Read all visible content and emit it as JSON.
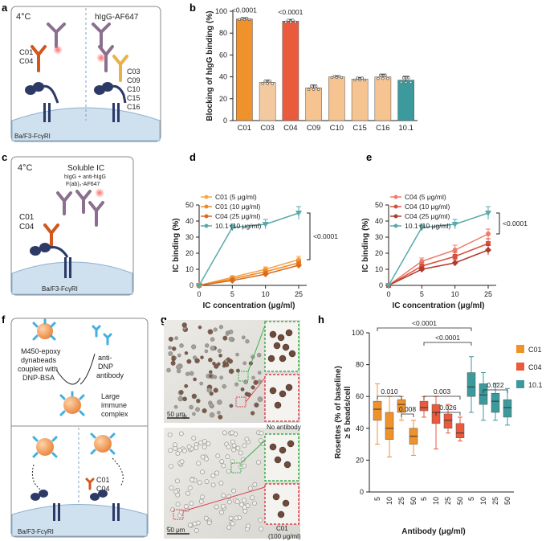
{
  "panel_labels": {
    "a": "a",
    "b": "b",
    "c": "c",
    "d": "d",
    "e": "e",
    "f": "f",
    "g": "g",
    "h": "h"
  },
  "panel_a": {
    "temp": "4°C",
    "label_right": "hIgG-AF647",
    "left_clones": [
      "C01",
      "C04"
    ],
    "right_clones": [
      "C03",
      "C09",
      "C10",
      "C15",
      "C16"
    ],
    "cell": "Ba/F3-FcγRI"
  },
  "panel_c": {
    "temp": "4°C",
    "title": "Soluble IC",
    "subtitle1": "hIgG + anti-hIgG",
    "subtitle2": "F(ab)₂-AF647",
    "clones": [
      "C01",
      "C04"
    ],
    "cell": "Ba/F3-FcγRI"
  },
  "panel_f": {
    "beads_text": [
      "M450-epoxy",
      "dynabeads",
      "coupled with",
      "DNP-BSA"
    ],
    "antibody_text": [
      "anti-",
      "DNP",
      "antibody"
    ],
    "complex_text": [
      "Large",
      "immune",
      "complex"
    ],
    "clones": [
      "C01",
      "C04"
    ],
    "cell": "Ba/F3-FcγRI"
  },
  "panel_g": {
    "scale_top": "50 μm",
    "scale_bottom": "50 μm",
    "label_top": "No antibody",
    "label_bottom1": "C01",
    "label_bottom2": "(100 μg/ml)"
  },
  "colors": {
    "C01": "#f0922b",
    "C03": "#f3c9a0",
    "C04": "#ea5a3d",
    "C09": "#f5c490",
    "C10": "#f5c490",
    "C15": "#f5c490",
    "C16": "#f5c490",
    "10.1": "#3d9a9c",
    "d_light": "#f4a64a",
    "d_mid": "#ee8a2a",
    "d_dark": "#d96b1c",
    "e_light": "#ef7a69",
    "e_mid": "#d9503a",
    "e_dark": "#b23a2b",
    "teal": "#5aa9ab"
  },
  "chart_data": [
    {
      "id": "b",
      "type": "bar",
      "ylabel": "Blocking of hIgG binding (%)",
      "ylim": [
        0,
        100
      ],
      "yticks": [
        "0",
        "20",
        "40",
        "60",
        "80",
        "100"
      ],
      "categories": [
        "C01",
        "C03",
        "C04",
        "C09",
        "C10",
        "C15",
        "C16",
        "10.1"
      ],
      "values": [
        93,
        35,
        91,
        30,
        40,
        38,
        40,
        37
      ],
      "errors": [
        1,
        2,
        1.5,
        2.5,
        1,
        1.5,
        2.5,
        3.5
      ],
      "annotations": [
        {
          "category": "C01",
          "text": "<0.0001"
        },
        {
          "category": "C04",
          "text": "<0.0001"
        }
      ]
    },
    {
      "id": "d",
      "type": "line",
      "xlabel": "IC concentration (μg/ml)",
      "ylabel": "IC binding (%)",
      "x": [
        0,
        5,
        10,
        25
      ],
      "xticks": [
        "0",
        "5",
        "10",
        "25"
      ],
      "ylim": [
        0,
        50
      ],
      "yticks": [
        "0",
        "10",
        "20",
        "30",
        "40",
        "50"
      ],
      "series": [
        {
          "name": "C01 (5 μg/ml)",
          "values": [
            0,
            5,
            10,
            16
          ],
          "errors": [
            0,
            1,
            1.5,
            2
          ]
        },
        {
          "name": "C01 (10 μg/ml)",
          "values": [
            0,
            4,
            8.5,
            14
          ],
          "errors": [
            0,
            1,
            1.5,
            2
          ]
        },
        {
          "name": "C04 (25 μg/ml)",
          "values": [
            0,
            3,
            7,
            12.5
          ],
          "errors": [
            0,
            1,
            1.5,
            2
          ]
        },
        {
          "name": "10.1 (10 μg/ml)",
          "values": [
            0,
            36,
            38,
            45
          ],
          "errors": [
            0,
            2,
            3,
            4
          ]
        }
      ],
      "annotation": "<0.0001"
    },
    {
      "id": "e",
      "type": "line",
      "xlabel": "IC concentration (μg/ml)",
      "ylabel": "IC binding (%)",
      "x": [
        0,
        5,
        10,
        25
      ],
      "xticks": [
        "0",
        "5",
        "10",
        "25"
      ],
      "ylim": [
        0,
        50
      ],
      "yticks": [
        "0",
        "10",
        "20",
        "30",
        "40",
        "50"
      ],
      "series": [
        {
          "name": "C04 (5 μg/ml)",
          "values": [
            0,
            15,
            22,
            32
          ],
          "errors": [
            0,
            2,
            3,
            3
          ]
        },
        {
          "name": "C04 (10 μg/ml)",
          "values": [
            0,
            12,
            18,
            26
          ],
          "errors": [
            0,
            2,
            2.5,
            3
          ]
        },
        {
          "name": "C04 (25 μg/ml)",
          "values": [
            0,
            10,
            14,
            22
          ],
          "errors": [
            0,
            1.5,
            2,
            3
          ]
        },
        {
          "name": "10.1 (10 μg/ml)",
          "values": [
            0,
            36,
            38,
            45
          ],
          "errors": [
            0,
            2,
            3,
            4
          ]
        }
      ],
      "annotation": "<0.0001"
    },
    {
      "id": "h",
      "type": "box",
      "xlabel": "Antibody (μg/ml)",
      "ylabel": "Rosettes (% of baseline) ≥ 5 beads/cell",
      "ylim": [
        0,
        100
      ],
      "yticks": [
        "0",
        "20",
        "40",
        "60",
        "80",
        "100"
      ],
      "groups": [
        {
          "name": "C01",
          "concentrations": [
            "5",
            "10",
            "25",
            "50"
          ],
          "boxes": [
            [
              30,
              45,
              52,
              57,
              68
            ],
            [
              22,
              33,
              40,
              50,
              60
            ],
            [
              45,
              50,
              55,
              58,
              60
            ],
            [
              23,
              30,
              35,
              40,
              45
            ]
          ]
        },
        {
          "name": "C04",
          "concentrations": [
            "5",
            "10",
            "25",
            "50"
          ],
          "boxes": [
            [
              47,
              51,
              53,
              57,
              60
            ],
            [
              27,
              43,
              50,
              55,
              60
            ],
            [
              37,
              40,
              45,
              49,
              55
            ],
            [
              32,
              34,
              37,
              43,
              47
            ]
          ]
        },
        {
          "name": "10.1",
          "concentrations": [
            "5",
            "10",
            "25",
            "50"
          ],
          "boxes": [
            [
              50,
              60,
              66,
              75,
              85
            ],
            [
              45,
              55,
              61,
              68,
              75
            ],
            [
              45,
              50,
              57,
              62,
              68
            ],
            [
              42,
              47,
              53,
              58,
              65
            ]
          ]
        }
      ],
      "legend": [
        "C01",
        "C04",
        "10.1"
      ],
      "brackets": [
        {
          "text": "<0.0001"
        },
        {
          "text": "<0.0001"
        },
        {
          "text": "0.010"
        },
        {
          "text": "0.008"
        },
        {
          "text": "0.003"
        },
        {
          "text": "0.026"
        },
        {
          "text": "0.022"
        }
      ]
    }
  ]
}
